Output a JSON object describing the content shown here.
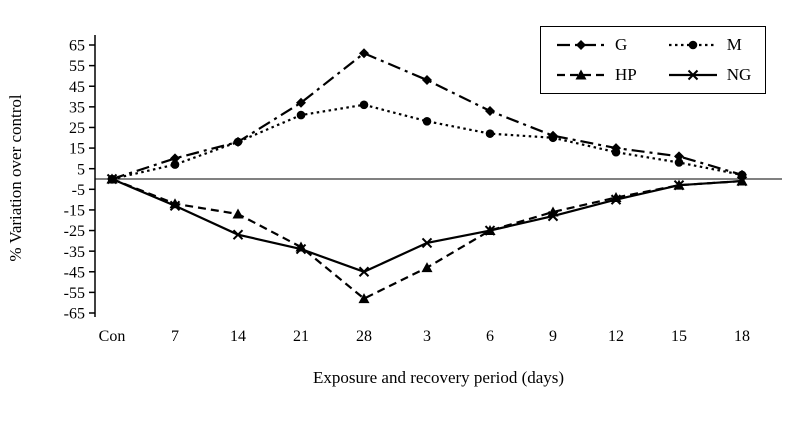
{
  "chart_data": {
    "type": "line",
    "title": "",
    "xlabel": "Exposure and recovery period (days)",
    "ylabel": "% Variation over control",
    "ylim": [
      -65,
      65
    ],
    "yticks": [
      65,
      55,
      45,
      35,
      25,
      15,
      5,
      -5,
      -15,
      -25,
      -35,
      -45,
      -55,
      -65
    ],
    "categories": [
      "Con",
      "7",
      "14",
      "21",
      "28",
      "3",
      "6",
      "9",
      "12",
      "15",
      "18"
    ],
    "grid": false,
    "legend_position": "top-right",
    "colors": {
      "line": "#000000",
      "background": "#ffffff"
    },
    "series": [
      {
        "name": "G",
        "marker": "diamond",
        "dash": "dashdot",
        "values": [
          0,
          10,
          18,
          37,
          61,
          48,
          33,
          21,
          15,
          11,
          2
        ]
      },
      {
        "name": "M",
        "marker": "circle",
        "dash": "dotted",
        "values": [
          0,
          7,
          18,
          31,
          36,
          28,
          22,
          20,
          13,
          8,
          2
        ]
      },
      {
        "name": "HP",
        "marker": "triangle",
        "dash": "dashed",
        "values": [
          0,
          -12,
          -17,
          -33,
          -58,
          -43,
          -25,
          -16,
          -9,
          -3,
          -1
        ]
      },
      {
        "name": "NG",
        "marker": "x",
        "dash": "solid",
        "values": [
          0,
          -13,
          -27,
          -34,
          -45,
          -31,
          -25,
          -18,
          -10,
          -3,
          -1
        ]
      }
    ]
  }
}
